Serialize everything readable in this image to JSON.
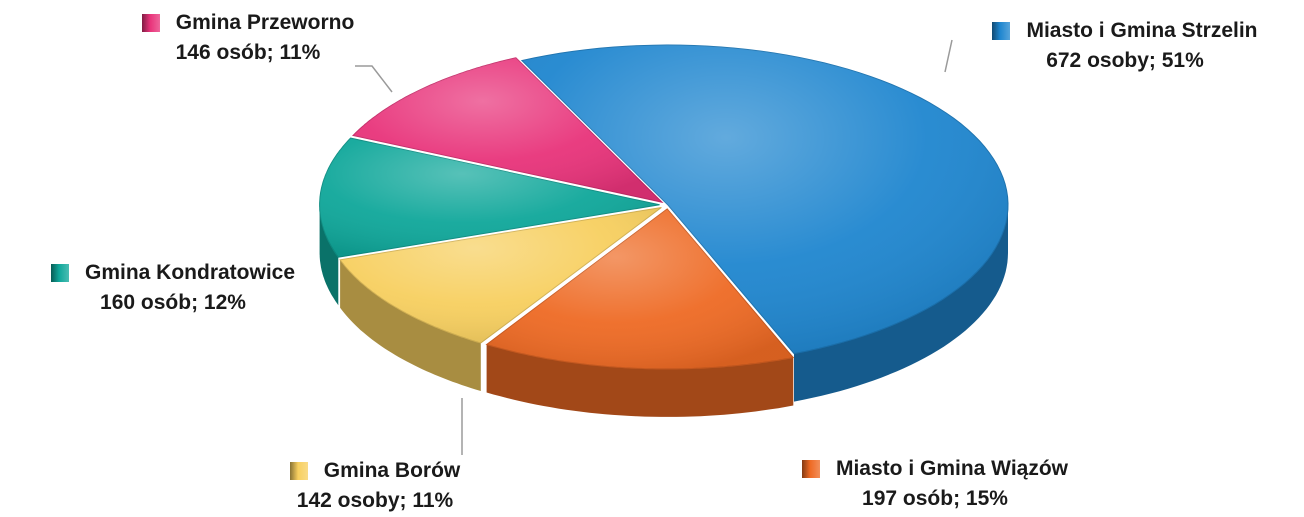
{
  "chart_data": {
    "type": "pie",
    "title": "",
    "unit_note": "",
    "slices": [
      {
        "name": "Miasto i Gmina Strzelin",
        "value": 672,
        "percent": 51,
        "value_label": "672 osoby; 51%",
        "color": "#1f86cf"
      },
      {
        "name": "Miasto i Gmina Wiązów",
        "value": 197,
        "percent": 15,
        "value_label": "197 osób; 15%",
        "color": "#ee6a24"
      },
      {
        "name": "Gmina Borów",
        "value": 142,
        "percent": 11,
        "value_label": "142 osoby; 11%",
        "color": "#f7cf5f"
      },
      {
        "name": "Gmina Kondratowice",
        "value": 160,
        "percent": 12,
        "value_label": "160 osób; 12%",
        "color": "#0fa79a"
      },
      {
        "name": "Gmina Przeworno",
        "value": 146,
        "percent": 11,
        "value_label": "146 osób; 11%",
        "color": "#e8337a"
      }
    ],
    "legend": "none",
    "data_labels": "outside",
    "style": "3d-exploded"
  }
}
